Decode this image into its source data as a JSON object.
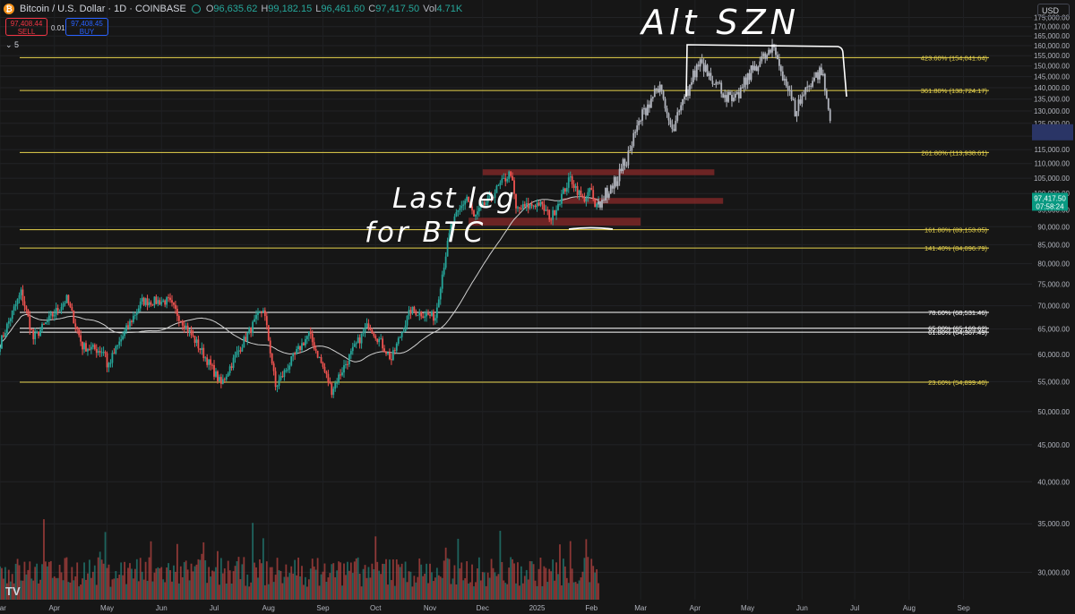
{
  "header": {
    "symbol": "Bitcoin / U.S. Dollar · 1D · COINBASE",
    "o_label": "O",
    "o_value": "96,635.62",
    "h_label": "H",
    "h_value": "99,182.15",
    "l_label": "L",
    "l_value": "96,461.60",
    "c_label": "C",
    "c_value": "97,417.50",
    "vol_label": "Vol",
    "vol_value": "4.71K"
  },
  "trade": {
    "sell_price": "97,408.44",
    "sell_label": "SELL",
    "spread": "0.01",
    "buy_price": "97,408.45",
    "buy_label": "BUY"
  },
  "indicator_collapse": "⌄ 5",
  "currency": "USD",
  "logo": "TV",
  "colors": {
    "background": "#161616",
    "up": "#26a69a",
    "down": "#ef5350",
    "projection": "#b2b5be",
    "fib_line": "#e8d44d",
    "zone": "#8a2a2a",
    "ma": "#cfcfcf"
  },
  "chart_data": {
    "type": "candlestick",
    "y_scale": "log",
    "ylim": [
      27500,
      185000
    ],
    "y_ticks": [
      {
        "value": 175000,
        "label": "175,000.00"
      },
      {
        "value": 170000,
        "label": "170,000.00"
      },
      {
        "value": 165000,
        "label": "165,000.00"
      },
      {
        "value": 160000,
        "label": "160,000.00"
      },
      {
        "value": 155000,
        "label": "155,000.00"
      },
      {
        "value": 150000,
        "label": "150,000.00"
      },
      {
        "value": 145000,
        "label": "145,000.00"
      },
      {
        "value": 140000,
        "label": "140,000.00"
      },
      {
        "value": 135000,
        "label": "135,000.00"
      },
      {
        "value": 130000,
        "label": "130,000.00"
      },
      {
        "value": 125000,
        "label": "125,000.00"
      },
      {
        "value": 120000,
        "label": "120,000.00"
      },
      {
        "value": 115000,
        "label": "115,000.00"
      },
      {
        "value": 110000,
        "label": "110,000.00"
      },
      {
        "value": 105000,
        "label": "105,000.00"
      },
      {
        "value": 100000,
        "label": "100,000.00"
      },
      {
        "value": 95000,
        "label": "95,000.00"
      },
      {
        "value": 90000,
        "label": "90,000.00"
      },
      {
        "value": 85000,
        "label": "85,000.00"
      },
      {
        "value": 80000,
        "label": "80,000.00"
      },
      {
        "value": 75000,
        "label": "75,000.00"
      },
      {
        "value": 70000,
        "label": "70,000.00"
      },
      {
        "value": 65000,
        "label": "65,000.00"
      },
      {
        "value": 60000,
        "label": "60,000.00"
      },
      {
        "value": 55000,
        "label": "55,000.00"
      },
      {
        "value": 50000,
        "label": "50,000.00"
      },
      {
        "value": 45000,
        "label": "45,000.00"
      },
      {
        "value": 40000,
        "label": "40,000.00"
      },
      {
        "value": 35000,
        "label": "35,000.00"
      },
      {
        "value": 30000,
        "label": "30,000.00"
      }
    ],
    "x_range": [
      "2024-03-01",
      "2025-10-10"
    ],
    "x_ticks": [
      {
        "date": "2024-03-01",
        "label": "Mar"
      },
      {
        "date": "2024-04-01",
        "label": "Apr"
      },
      {
        "date": "2024-05-01",
        "label": "May"
      },
      {
        "date": "2024-06-01",
        "label": "Jun"
      },
      {
        "date": "2024-07-01",
        "label": "Jul"
      },
      {
        "date": "2024-08-01",
        "label": "Aug"
      },
      {
        "date": "2024-09-01",
        "label": "Sep"
      },
      {
        "date": "2024-10-01",
        "label": "Oct"
      },
      {
        "date": "2024-11-01",
        "label": "Nov"
      },
      {
        "date": "2024-12-01",
        "label": "Dec"
      },
      {
        "date": "2025-01-01",
        "label": "2025"
      },
      {
        "date": "2025-02-01",
        "label": "Feb"
      },
      {
        "date": "2025-03-01",
        "label": "Mar"
      },
      {
        "date": "2025-04-01",
        "label": "Apr"
      },
      {
        "date": "2025-05-01",
        "label": "May"
      },
      {
        "date": "2025-06-01",
        "label": "Jun"
      },
      {
        "date": "2025-07-01",
        "label": "Jul"
      },
      {
        "date": "2025-08-01",
        "label": "Aug"
      },
      {
        "date": "2025-09-01",
        "label": "Sep"
      }
    ],
    "current_price": {
      "label": "97,417.50",
      "timer": "07:58:24",
      "value": 97417.5
    },
    "price_marker": {
      "value": 121500
    },
    "fib_levels": [
      {
        "value": 154041.64,
        "label": "423.60% (154,041.64)",
        "color": "#e8d44d"
      },
      {
        "value": 138724.17,
        "label": "361.80% (138,724.17)",
        "color": "#e8d44d"
      },
      {
        "value": 113938.61,
        "label": "261.80% (113,938.61)",
        "color": "#e8d44d"
      },
      {
        "value": 89153.05,
        "label": "161.80% (89,153.05)",
        "color": "#e8d44d"
      },
      {
        "value": 84096.79,
        "label": "141.40% (84,096.79)",
        "color": "#e8d44d"
      },
      {
        "value": 68531.46,
        "label": "78.60% (68,531.46)",
        "color": "#ffffff"
      },
      {
        "value": 65169.62,
        "label": "65.00% (65,169.62)",
        "color": "#ffffff"
      },
      {
        "value": 64367.49,
        "label": "61.80% (64,367.49)",
        "color": "#ffffff"
      },
      {
        "value": 54899.4,
        "label": "23.60% (54,899.40)",
        "color": "#e8d44d"
      }
    ],
    "zones": [
      {
        "from": "2024-12-01",
        "to": "2025-04-12",
        "low": 106000,
        "high": 108000
      },
      {
        "from": "2025-01-15",
        "to": "2025-04-17",
        "low": 96800,
        "high": 98600
      },
      {
        "from": "2024-11-23",
        "to": "2025-03-01",
        "low": 90300,
        "high": 92600
      }
    ],
    "history_anchors": [
      [
        "2024-03-01",
        62000
      ],
      [
        "2024-03-13",
        73000
      ],
      [
        "2024-03-20",
        63000
      ],
      [
        "2024-04-08",
        71500
      ],
      [
        "2024-04-17",
        61500
      ],
      [
        "2024-04-30",
        60500
      ],
      [
        "2024-05-01",
        57500
      ],
      [
        "2024-05-21",
        71000
      ],
      [
        "2024-06-05",
        71000
      ],
      [
        "2024-06-24",
        60500
      ],
      [
        "2024-07-05",
        54500
      ],
      [
        "2024-07-29",
        69500
      ],
      [
        "2024-08-05",
        54000
      ],
      [
        "2024-08-24",
        64000
      ],
      [
        "2024-09-06",
        53500
      ],
      [
        "2024-09-27",
        66000
      ],
      [
        "2024-10-10",
        59000
      ],
      [
        "2024-10-21",
        69000
      ],
      [
        "2024-11-04",
        67500
      ],
      [
        "2024-11-13",
        90000
      ],
      [
        "2024-11-22",
        99000
      ],
      [
        "2024-11-26",
        92500
      ],
      [
        "2024-12-05",
        98500
      ],
      [
        "2024-12-17",
        107000
      ],
      [
        "2024-12-20",
        95000
      ],
      [
        "2025-01-02",
        97000
      ],
      [
        "2025-01-09",
        92500
      ],
      [
        "2025-01-20",
        105000
      ],
      [
        "2025-01-27",
        98000
      ],
      [
        "2025-02-01",
        101000
      ],
      [
        "2025-02-03",
        95000
      ],
      [
        "2025-02-05",
        97417
      ]
    ],
    "projection_anchors": [
      [
        "2025-02-05",
        97000
      ],
      [
        "2025-02-15",
        104000
      ],
      [
        "2025-02-22",
        113000
      ],
      [
        "2025-03-01",
        127000
      ],
      [
        "2025-03-11",
        141000
      ],
      [
        "2025-03-19",
        121000
      ],
      [
        "2025-04-04",
        153000
      ],
      [
        "2025-04-14",
        141000
      ],
      [
        "2025-04-23",
        133000
      ],
      [
        "2025-05-05",
        150000
      ],
      [
        "2025-05-16",
        158000
      ],
      [
        "2025-05-28",
        130000
      ],
      [
        "2025-06-05",
        142000
      ],
      [
        "2025-06-12",
        148000
      ],
      [
        "2025-06-17",
        126000
      ]
    ],
    "volume_ylim": [
      0,
      100
    ],
    "annotations": [
      {
        "text": "Alt SZN"
      },
      {
        "text": "Last leg"
      },
      {
        "text": "for BTC"
      }
    ]
  }
}
